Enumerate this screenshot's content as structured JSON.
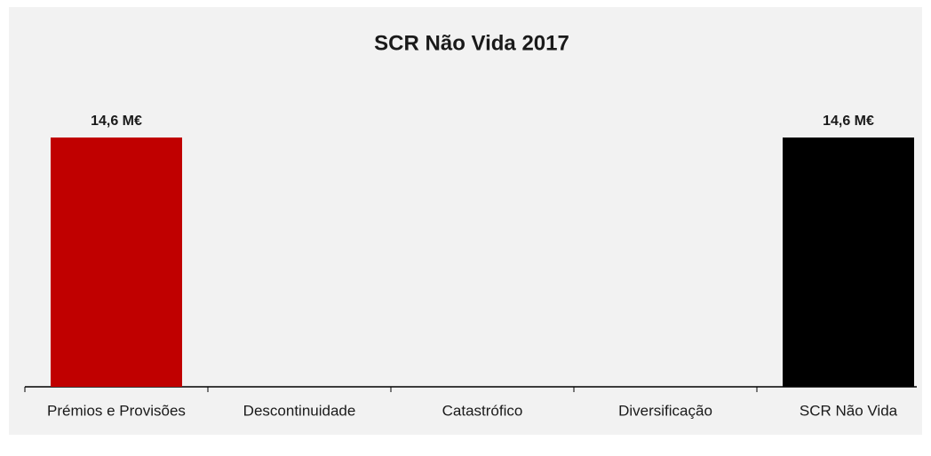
{
  "chart_data": {
    "type": "bar",
    "title": "SCR Não Vida 2017",
    "categories": [
      "Prémios e Provisões",
      "Descontinuidade",
      "Catastrófico",
      "Diversificação",
      "SCR Não Vida"
    ],
    "values": [
      14.6,
      null,
      null,
      null,
      14.6
    ],
    "value_labels": [
      "14,6 M€",
      null,
      null,
      null,
      "14,6 M€"
    ],
    "colors": [
      "#c00000",
      null,
      null,
      null,
      "#000000"
    ]
  }
}
